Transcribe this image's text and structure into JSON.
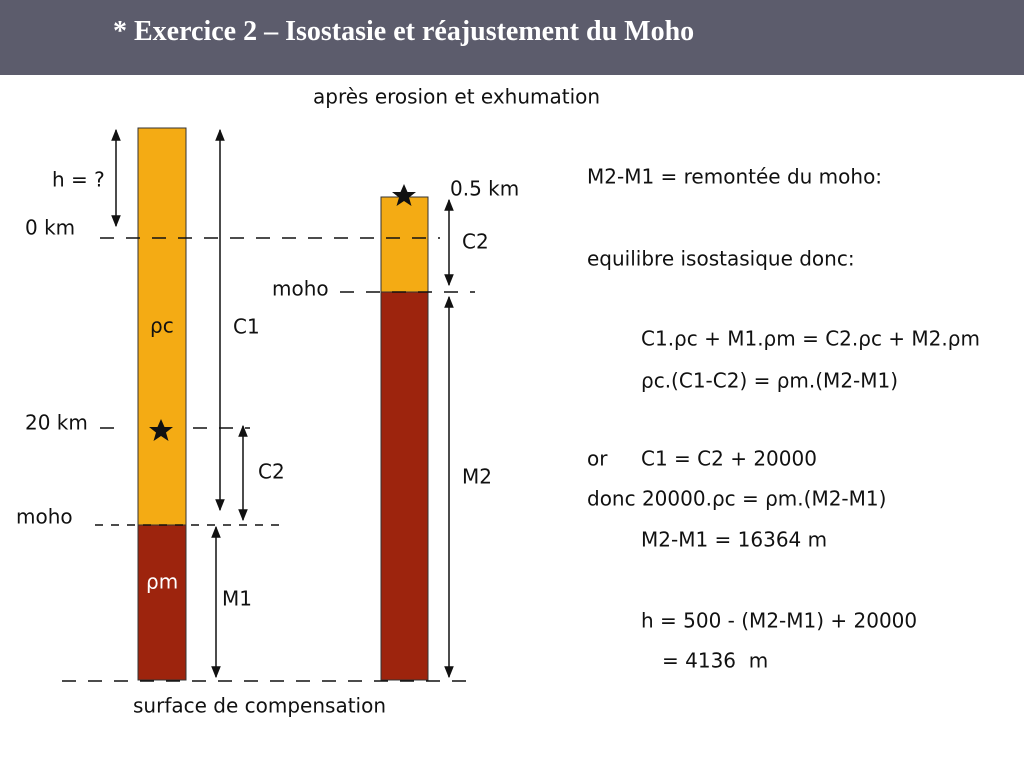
{
  "header": {
    "title": "* Exercice 2 – Isostasie et réajustement du Moho"
  },
  "diagram": {
    "caption": "après erosion et exhumation",
    "left": {
      "h": "h = ?",
      "zero": "0 km",
      "rho_c": "ρc",
      "c1": "C1",
      "depth20": "20 km",
      "c2": "C2",
      "moho": "moho",
      "rho_m": "ρm",
      "m1": "M1"
    },
    "right": {
      "top": "0.5 km",
      "c2": "C2",
      "moho": "moho",
      "m2": "M2"
    },
    "base": "surface de compensation"
  },
  "equations": {
    "l1": "M2-M1 = remontée du moho:",
    "l2": "equilibre isostasique donc:",
    "l3": "C1.ρc + M1.ρm = C2.ρc + M2.ρm",
    "l4": "ρc.(C1-C2) = ρm.(M2-M1)",
    "l5a": "or",
    "l5b": "C1 = C2 + 20000",
    "l6": "donc 20000.ρc = ρm.(M2-M1)",
    "l7": "M2-M1 = 16364 m",
    "l8": "h = 500 - (M2-M1) + 20000",
    "l9": "= 4136  m"
  }
}
